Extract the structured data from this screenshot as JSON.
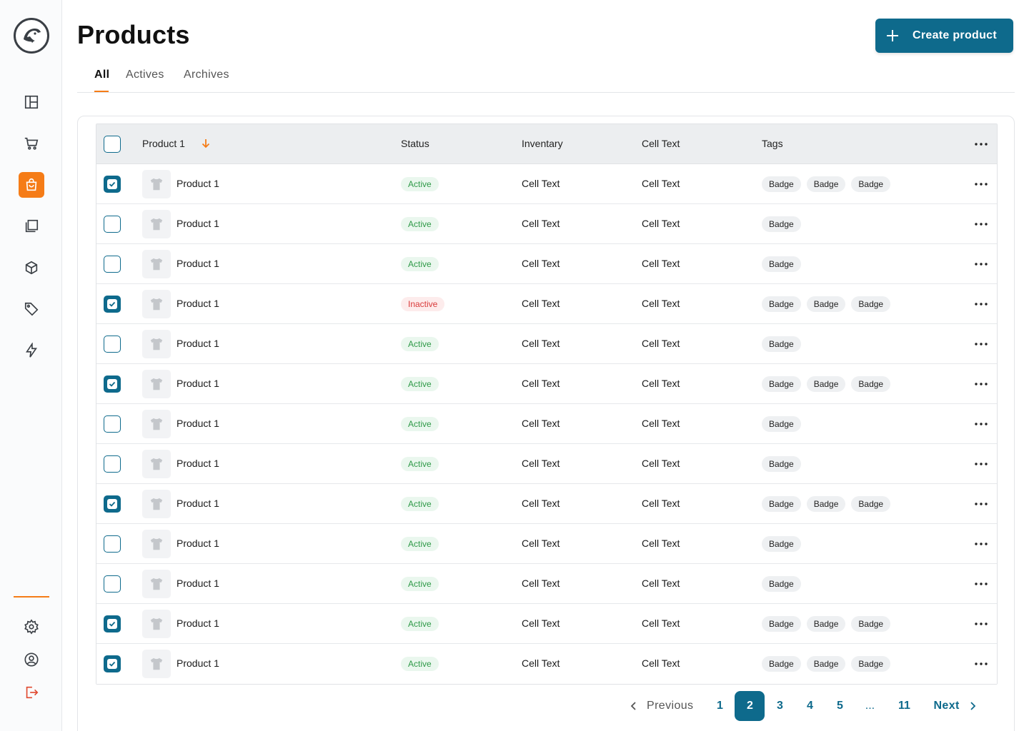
{
  "header": {
    "title": "Products",
    "create_button": "Create product"
  },
  "tabs": [
    {
      "label": "All",
      "active": true
    },
    {
      "label": "Actives",
      "active": false
    },
    {
      "label": "Archives",
      "active": false
    }
  ],
  "sidebar": {
    "items": [
      {
        "icon": "dashboard-icon",
        "active": false
      },
      {
        "icon": "cart-icon",
        "active": false
      },
      {
        "icon": "shopping-bag-icon",
        "active": true
      },
      {
        "icon": "collections-icon",
        "active": false
      },
      {
        "icon": "box-icon",
        "active": false
      },
      {
        "icon": "tag-icon",
        "active": false
      },
      {
        "icon": "lightning-icon",
        "active": false
      }
    ],
    "bottom_items": [
      {
        "icon": "gear-icon"
      },
      {
        "icon": "user-circle-icon"
      },
      {
        "icon": "logout-icon"
      }
    ],
    "accent_color": "#f57c17"
  },
  "table": {
    "columns": [
      "Product 1",
      "Status",
      "Inventary",
      "Cell Text",
      "Tags"
    ],
    "rows": [
      {
        "checked": true,
        "name": "Product 1",
        "status": "Active",
        "inventory": "Cell Text",
        "cell": "Cell Text",
        "tags": [
          "Badge",
          "Badge",
          "Badge"
        ]
      },
      {
        "checked": false,
        "name": "Product 1",
        "status": "Active",
        "inventory": "Cell Text",
        "cell": "Cell Text",
        "tags": [
          "Badge"
        ]
      },
      {
        "checked": false,
        "name": "Product 1",
        "status": "Active",
        "inventory": "Cell Text",
        "cell": "Cell Text",
        "tags": [
          "Badge"
        ]
      },
      {
        "checked": true,
        "name": "Product 1",
        "status": "Inactive",
        "inventory": "Cell Text",
        "cell": "Cell Text",
        "tags": [
          "Badge",
          "Badge",
          "Badge"
        ]
      },
      {
        "checked": false,
        "name": "Product 1",
        "status": "Active",
        "inventory": "Cell Text",
        "cell": "Cell Text",
        "tags": [
          "Badge"
        ]
      },
      {
        "checked": true,
        "name": "Product 1",
        "status": "Active",
        "inventory": "Cell Text",
        "cell": "Cell Text",
        "tags": [
          "Badge",
          "Badge",
          "Badge"
        ]
      },
      {
        "checked": false,
        "name": "Product 1",
        "status": "Active",
        "inventory": "Cell Text",
        "cell": "Cell Text",
        "tags": [
          "Badge"
        ]
      },
      {
        "checked": false,
        "name": "Product 1",
        "status": "Active",
        "inventory": "Cell Text",
        "cell": "Cell Text",
        "tags": [
          "Badge"
        ]
      },
      {
        "checked": true,
        "name": "Product 1",
        "status": "Active",
        "inventory": "Cell Text",
        "cell": "Cell Text",
        "tags": [
          "Badge",
          "Badge",
          "Badge"
        ]
      },
      {
        "checked": false,
        "name": "Product 1",
        "status": "Active",
        "inventory": "Cell Text",
        "cell": "Cell Text",
        "tags": [
          "Badge"
        ]
      },
      {
        "checked": false,
        "name": "Product 1",
        "status": "Active",
        "inventory": "Cell Text",
        "cell": "Cell Text",
        "tags": [
          "Badge"
        ]
      },
      {
        "checked": true,
        "name": "Product 1",
        "status": "Active",
        "inventory": "Cell Text",
        "cell": "Cell Text",
        "tags": [
          "Badge",
          "Badge",
          "Badge"
        ]
      },
      {
        "checked": true,
        "name": "Product 1",
        "status": "Active",
        "inventory": "Cell Text",
        "cell": "Cell Text",
        "tags": [
          "Badge",
          "Badge",
          "Badge"
        ]
      }
    ]
  },
  "pagination": {
    "previous": "Previous",
    "next": "Next",
    "pages": [
      "1",
      "2",
      "3",
      "4",
      "5",
      "...",
      "11"
    ],
    "current": "2"
  },
  "colors": {
    "primary": "#0e6a8c",
    "accent": "#f57c17",
    "active_status": "#2f9a48",
    "inactive_status": "#d93a3a"
  }
}
